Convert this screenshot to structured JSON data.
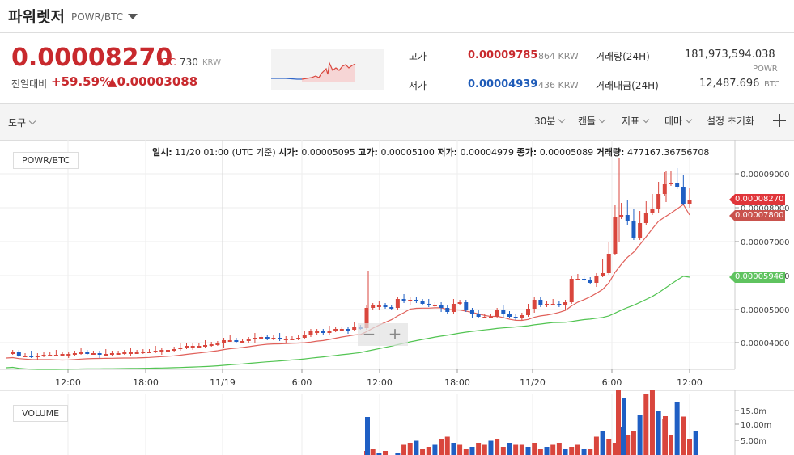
{
  "header": {
    "name": "파워렛저",
    "pair": "POWR/BTC",
    "price": "0.00008270",
    "price_unit": "BTC",
    "price_krw": "730",
    "price_krw_unit": "KRW",
    "change_label": "전일대비",
    "change_pct": "+59.59%",
    "change_val": "▲0.00003088"
  },
  "stats": {
    "high_label": "고가",
    "high_val": "0.00009785",
    "high_krw": "864 KRW",
    "low_label": "저가",
    "low_val": "0.00004939",
    "low_krw": "436 KRW",
    "vol_label": "거래량(24H)",
    "vol_val": "181,973,594.038",
    "vol_unit": "POWR",
    "amt_label": "거래대금(24H)",
    "amt_val": "12,487.696",
    "amt_unit": "BTC"
  },
  "toolbar": {
    "tools": "도구",
    "interval": "30분",
    "candle": "캔들",
    "indicator": "지표",
    "theme": "테마",
    "reset": "설정 초기화"
  },
  "chart": {
    "pair_label": "POWR/BTC",
    "ohlc": {
      "time_label": "일시:",
      "time_val": "11/20 01:00 (UTC 기준)",
      "open_label": "시가:",
      "open_val": "0.00005095",
      "high_label": "고가:",
      "high_val": "0.00005100",
      "low_label": "저가:",
      "low_val": "0.00004979",
      "close_label": "종가:",
      "close_val": "0.00005089",
      "vol_label": "거래량:",
      "vol_val": "477167.36756708"
    },
    "price_ticks": [
      "0.00009000",
      "0.00008000",
      "0.00007000",
      "0.00006000",
      "0.00005000",
      "0.00004000"
    ],
    "tags": {
      "current": "0.00008270",
      "ma_fast": "0.00007800",
      "ma_slow": "0.00005946"
    },
    "time_ticks": [
      "12:00",
      "18:00",
      "11/19",
      "6:00",
      "12:00",
      "18:00",
      "11/20",
      "6:00",
      "12:00"
    ],
    "volume_label": "VOLUME",
    "volume_ticks": [
      "15.0m",
      "10.00m",
      "5.00m"
    ],
    "zoom_minus": "−",
    "zoom_plus": "+",
    "colors": {
      "up": "#d9463d",
      "down": "#1f5fc4",
      "ma_fast": "#e0605a",
      "ma_slow": "#52c452"
    }
  }
}
